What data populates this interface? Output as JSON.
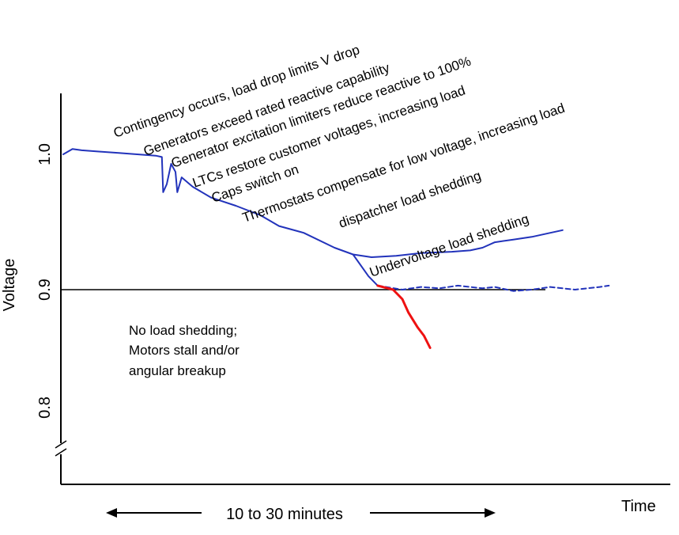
{
  "chart_data": {
    "type": "line",
    "title": "",
    "xlabel": "Time",
    "ylabel": "Voltage",
    "yticks": [
      {
        "value": 1.0,
        "label": "1.0"
      },
      {
        "value": 0.9,
        "label": "0.9"
      },
      {
        "value": 0.8,
        "label": "0.8"
      }
    ],
    "ylim": [
      0.745,
      1.04
    ],
    "xlim": [
      0,
      10
    ],
    "y_axis_break": true,
    "grid": false,
    "reference_line": {
      "y": 0.9
    },
    "series": [
      {
        "color": "#2233bb",
        "style": "solid",
        "points": [
          [
            0,
            1.0
          ],
          [
            0.15,
            1.004
          ],
          [
            0.3,
            1.003
          ],
          [
            0.6,
            1.002
          ],
          [
            0.9,
            1.001
          ],
          [
            1.2,
            1.0
          ],
          [
            1.5,
            0.999
          ],
          [
            1.6,
            0.998
          ],
          [
            1.62,
            0.972
          ],
          [
            1.68,
            0.978
          ],
          [
            1.75,
            0.993
          ],
          [
            1.82,
            0.987
          ],
          [
            1.85,
            0.972
          ],
          [
            1.92,
            0.983
          ],
          [
            2.1,
            0.976
          ],
          [
            2.4,
            0.968
          ],
          [
            2.8,
            0.962
          ],
          [
            3.2,
            0.955
          ],
          [
            3.5,
            0.947
          ],
          [
            3.9,
            0.942
          ],
          [
            4.4,
            0.931
          ],
          [
            4.7,
            0.926
          ],
          [
            4.95,
            0.91
          ],
          [
            5.1,
            0.903
          ]
        ]
      },
      {
        "color": "#2233bb",
        "style": "solid",
        "points": [
          [
            4.7,
            0.926
          ],
          [
            5.0,
            0.924
          ],
          [
            5.4,
            0.925
          ],
          [
            5.8,
            0.927
          ],
          [
            6.3,
            0.928
          ],
          [
            6.6,
            0.929
          ],
          [
            6.8,
            0.931
          ],
          [
            7.0,
            0.935
          ],
          [
            7.3,
            0.937
          ],
          [
            7.6,
            0.939
          ],
          [
            7.9,
            0.942
          ],
          [
            8.1,
            0.944
          ]
        ]
      },
      {
        "color": "#2233bb",
        "style": "dashed",
        "points": [
          [
            5.1,
            0.903
          ],
          [
            5.5,
            0.9
          ],
          [
            5.8,
            0.902
          ],
          [
            6.1,
            0.901
          ],
          [
            6.4,
            0.903
          ],
          [
            6.8,
            0.901
          ],
          [
            7.0,
            0.902
          ],
          [
            7.3,
            0.899
          ],
          [
            7.6,
            0.9
          ],
          [
            7.9,
            0.902
          ],
          [
            8.3,
            0.9
          ],
          [
            8.7,
            0.902
          ],
          [
            8.85,
            0.903
          ]
        ]
      },
      {
        "color": "#ee1111",
        "style": "solid",
        "points": [
          [
            5.1,
            0.903
          ],
          [
            5.35,
            0.9
          ],
          [
            5.5,
            0.893
          ],
          [
            5.6,
            0.883
          ],
          [
            5.75,
            0.872
          ],
          [
            5.85,
            0.866
          ],
          [
            5.95,
            0.857
          ]
        ]
      }
    ],
    "annotations": [
      "Contingency occurs, load drop limits V drop",
      "Generators exceed rated reactive capability",
      "Generator excitation limiters reduce reactive to 100%",
      "LTCs restore customer voltages, increasing load",
      "Caps switch on",
      "Thermostats compensate for low voltage, increasing load",
      "dispatcher load shedding",
      "Undervoltage load shedding"
    ],
    "note_lines": [
      "No load shedding;",
      "Motors stall and/or",
      "angular breakup"
    ],
    "duration_label": "10 to 30 minutes"
  }
}
